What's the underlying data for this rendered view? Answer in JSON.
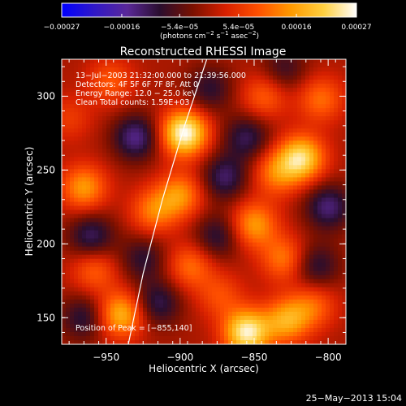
{
  "chart_data": {
    "type": "heatmap",
    "title": "Reconstructed RHESSI Image",
    "xlabel": "Heliocentric X (arcsec)",
    "ylabel": "Heliocentric Y (arcsec)",
    "xlim": [
      -980,
      -788
    ],
    "ylim": [
      132,
      325
    ],
    "x_ticks": [
      -950,
      -900,
      -850,
      -800
    ],
    "x_tick_labels": [
      "−950",
      "−900",
      "−850",
      "−800"
    ],
    "y_ticks": [
      150,
      200,
      250,
      300
    ],
    "y_tick_labels": [
      "150",
      "200",
      "250",
      "300"
    ],
    "colorbar": {
      "min": -0.00027,
      "max": 0.00027,
      "ticks": [
        -0.00027,
        -0.00016,
        -5.4e-05,
        5.4e-05,
        0.00016,
        0.00027
      ],
      "tick_labels": [
        "−0.00027",
        "−0.00016",
        "−5.4e−05",
        "5.4e−05",
        "0.00016",
        "0.00027"
      ],
      "units_prefix": "(photons cm",
      "units_exp1": "−2",
      "units_mid": " s",
      "units_exp2": "−1",
      "units_mid2": " asec",
      "units_exp3": "−2",
      "units_suffix": ")",
      "colors": [
        "#0000ff",
        "#3018c8",
        "#5a2898",
        "#2a0e2e",
        "#7a1000",
        "#d82000",
        "#ff5000",
        "#ff9a00",
        "#ffd040",
        "#ffffff"
      ]
    },
    "annotations": [
      "13−Jul−2003 21:32:00.000 to 21:39:56.000",
      "Detectors: 4F 5F 6F 7F 8F, Att 0",
      "Energy Range: 12.0 − 25.0 keV",
      "Clean    Total counts: 1.59E+03"
    ],
    "peak_label": "Position of Peak = [−855,140]",
    "peak": [
      -855,
      140
    ],
    "limb_line": [
      [
        -935,
        132
      ],
      [
        -925,
        180
      ],
      [
        -912,
        230
      ],
      [
        -897,
        280
      ],
      [
        -882,
        325
      ]
    ],
    "blobs": [
      {
        "x": -897,
        "y": 275,
        "v": 0.00027
      },
      {
        "x": -855,
        "y": 140,
        "v": 0.00025
      },
      {
        "x": -940,
        "y": 152,
        "v": 0.00018
      },
      {
        "x": -965,
        "y": 238,
        "v": 0.00015
      },
      {
        "x": -947,
        "y": 310,
        "v": 9e-05
      },
      {
        "x": -918,
        "y": 222,
        "v": 0.00012
      },
      {
        "x": -900,
        "y": 233,
        "v": 0.00014
      },
      {
        "x": -893,
        "y": 185,
        "v": 0.00011
      },
      {
        "x": -850,
        "y": 213,
        "v": 0.00015
      },
      {
        "x": -843,
        "y": 300,
        "v": 0.0001
      },
      {
        "x": -835,
        "y": 248,
        "v": 0.00012
      },
      {
        "x": -818,
        "y": 258,
        "v": 0.00022
      },
      {
        "x": -805,
        "y": 298,
        "v": 0.00011
      },
      {
        "x": -830,
        "y": 190,
        "v": 0.00012
      },
      {
        "x": -810,
        "y": 158,
        "v": 0.0001
      },
      {
        "x": -828,
        "y": 148,
        "v": 0.00016
      },
      {
        "x": -958,
        "y": 182,
        "v": 0.0001
      },
      {
        "x": -873,
        "y": 165,
        "v": 8e-05
      },
      {
        "x": -975,
        "y": 285,
        "v": 6e-05
      },
      {
        "x": -870,
        "y": 245,
        "v": -0.00012
      },
      {
        "x": -930,
        "y": 272,
        "v": -0.00014
      },
      {
        "x": -960,
        "y": 205,
        "v": -0.00012
      },
      {
        "x": -915,
        "y": 160,
        "v": -0.00011
      },
      {
        "x": -875,
        "y": 205,
        "v": -0.0001
      },
      {
        "x": -855,
        "y": 272,
        "v": -0.00011
      },
      {
        "x": -800,
        "y": 225,
        "v": -0.00013
      },
      {
        "x": -808,
        "y": 185,
        "v": -0.0001
      },
      {
        "x": -880,
        "y": 305,
        "v": -9e-05
      },
      {
        "x": -965,
        "y": 150,
        "v": -0.0001
      },
      {
        "x": -830,
        "y": 318,
        "v": -8e-05
      },
      {
        "x": -925,
        "y": 190,
        "v": -9e-05
      }
    ]
  },
  "footer": {
    "timestamp": "25−May−2013 15:04"
  }
}
